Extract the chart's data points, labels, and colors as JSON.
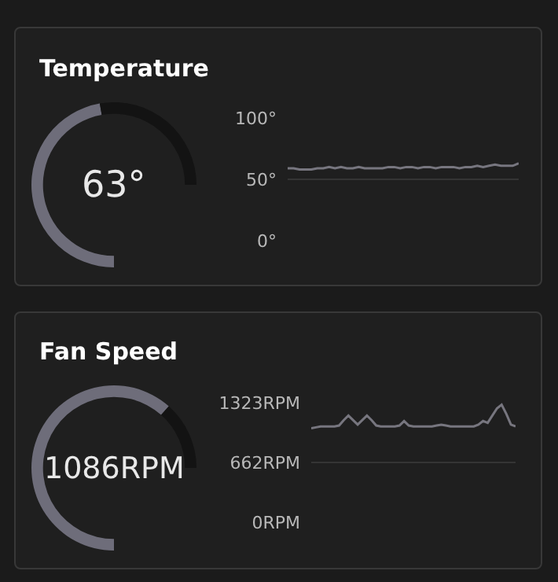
{
  "chart_data": [
    {
      "type": "donut",
      "title": "Temperature",
      "categories": [
        null,
        null
      ],
      "values": [
        63,
        37
      ],
      "colors": [
        "#6e6d7a",
        "#131313"
      ],
      "annotations": [
        "63°"
      ]
    },
    {
      "type": "line",
      "categories": [
        null,
        null,
        null,
        null,
        null,
        null,
        null,
        null,
        null,
        null,
        null,
        null,
        null,
        null,
        null,
        null,
        null,
        null,
        null,
        null,
        null,
        null,
        null,
        null,
        null,
        null,
        null,
        null,
        null,
        null,
        null,
        null,
        null,
        null,
        null,
        null,
        null,
        null,
        null,
        null
      ],
      "series": [
        {
          "color": "#77767f",
          "values": [
            59,
            59,
            58,
            58,
            58,
            59,
            59,
            60,
            59,
            60,
            59,
            59,
            60,
            59,
            59,
            59,
            59,
            60,
            60,
            59,
            60,
            60,
            59,
            60,
            60,
            59,
            60,
            60,
            60,
            59,
            60,
            60,
            61,
            60,
            61,
            62,
            61,
            61,
            61,
            63
          ]
        }
      ],
      "ylim": [
        0,
        100
      ],
      "yticks": [
        {
          "value": 0,
          "label": "0°"
        },
        {
          "value": 50,
          "label": "50°"
        },
        {
          "value": 100,
          "label": "100°"
        }
      ],
      "grid": "y",
      "tick_labels": "y"
    },
    {
      "type": "donut",
      "title": "Fan Speed",
      "categories": [
        null,
        null
      ],
      "values": [
        82.1,
        17.9
      ],
      "colors": [
        "#6e6d7a",
        "#131313"
      ],
      "annotations": [
        "1086RPM"
      ]
    },
    {
      "type": "line",
      "categories": [
        null,
        null,
        null,
        null,
        null,
        null,
        null,
        null,
        null,
        null,
        null,
        null,
        null,
        null,
        null,
        null,
        null,
        null,
        null,
        null,
        null,
        null,
        null,
        null,
        null,
        null,
        null,
        null,
        null,
        null,
        null,
        null,
        null,
        null,
        null,
        null,
        null,
        null,
        null,
        null,
        null,
        null,
        null,
        null,
        null
      ],
      "series": [
        {
          "color": "#77767f",
          "values": [
            1040,
            1050,
            1060,
            1060,
            1060,
            1060,
            1070,
            1130,
            1180,
            1130,
            1080,
            1130,
            1180,
            1130,
            1070,
            1060,
            1060,
            1060,
            1060,
            1070,
            1120,
            1070,
            1060,
            1060,
            1060,
            1060,
            1060,
            1070,
            1080,
            1070,
            1060,
            1060,
            1060,
            1060,
            1060,
            1060,
            1080,
            1120,
            1100,
            1180,
            1260,
            1300,
            1200,
            1080,
            1060
          ]
        }
      ],
      "ylim": [
        0,
        1323
      ],
      "yticks": [
        {
          "value": 0,
          "label": "0RPM"
        },
        {
          "value": 662,
          "label": "662RPM"
        },
        {
          "value": 1323,
          "label": "1323RPM"
        }
      ],
      "grid": "y",
      "tick_labels": "y"
    }
  ]
}
